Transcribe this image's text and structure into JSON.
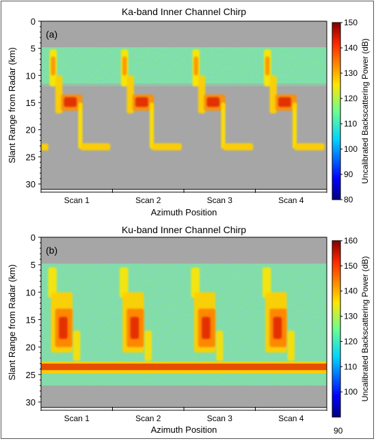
{
  "chart_data": [
    {
      "type": "heatmap",
      "panel_label": "(a)",
      "title": "Ka-band Inner Channel Chirp",
      "xlabel": "Azimuth Position",
      "ylabel": "Slant Range from Radar (km)",
      "ylim": [
        0,
        31
      ],
      "y_inverted": true,
      "yticks": [
        0,
        5,
        10,
        15,
        20,
        25,
        30
      ],
      "categories": [
        "Scan 1",
        "Scan 2",
        "Scan 3",
        "Scan 4"
      ],
      "colorbar": {
        "label": "Uncalibrated Backscattering Power (dB)",
        "range": [
          80,
          150
        ],
        "ticks": [
          80,
          90,
          100,
          110,
          120,
          130,
          140,
          150
        ]
      },
      "background_color": "#a6a6a6",
      "data_top_km": 4.8,
      "grid": false
    },
    {
      "type": "heatmap",
      "panel_label": "(b)",
      "title": "Ku-band Inner Channel Chirp",
      "xlabel": "Azimuth Position",
      "ylabel": "Slant Range from Radar (km)",
      "ylim": [
        0,
        31
      ],
      "y_inverted": true,
      "yticks": [
        0,
        5,
        10,
        15,
        20,
        25,
        30
      ],
      "categories": [
        "Scan 1",
        "Scan 2",
        "Scan 3",
        "Scan 4"
      ],
      "colorbar": {
        "label": "Uncalibrated Backscattering Power (dB)",
        "range": [
          90,
          160
        ],
        "ticks": [
          100,
          110,
          120,
          130,
          140,
          150,
          160
        ],
        "bottom_label": "90"
      },
      "background_color": "#a6a6a6",
      "data_top_km": 4.8,
      "grid": false
    }
  ]
}
